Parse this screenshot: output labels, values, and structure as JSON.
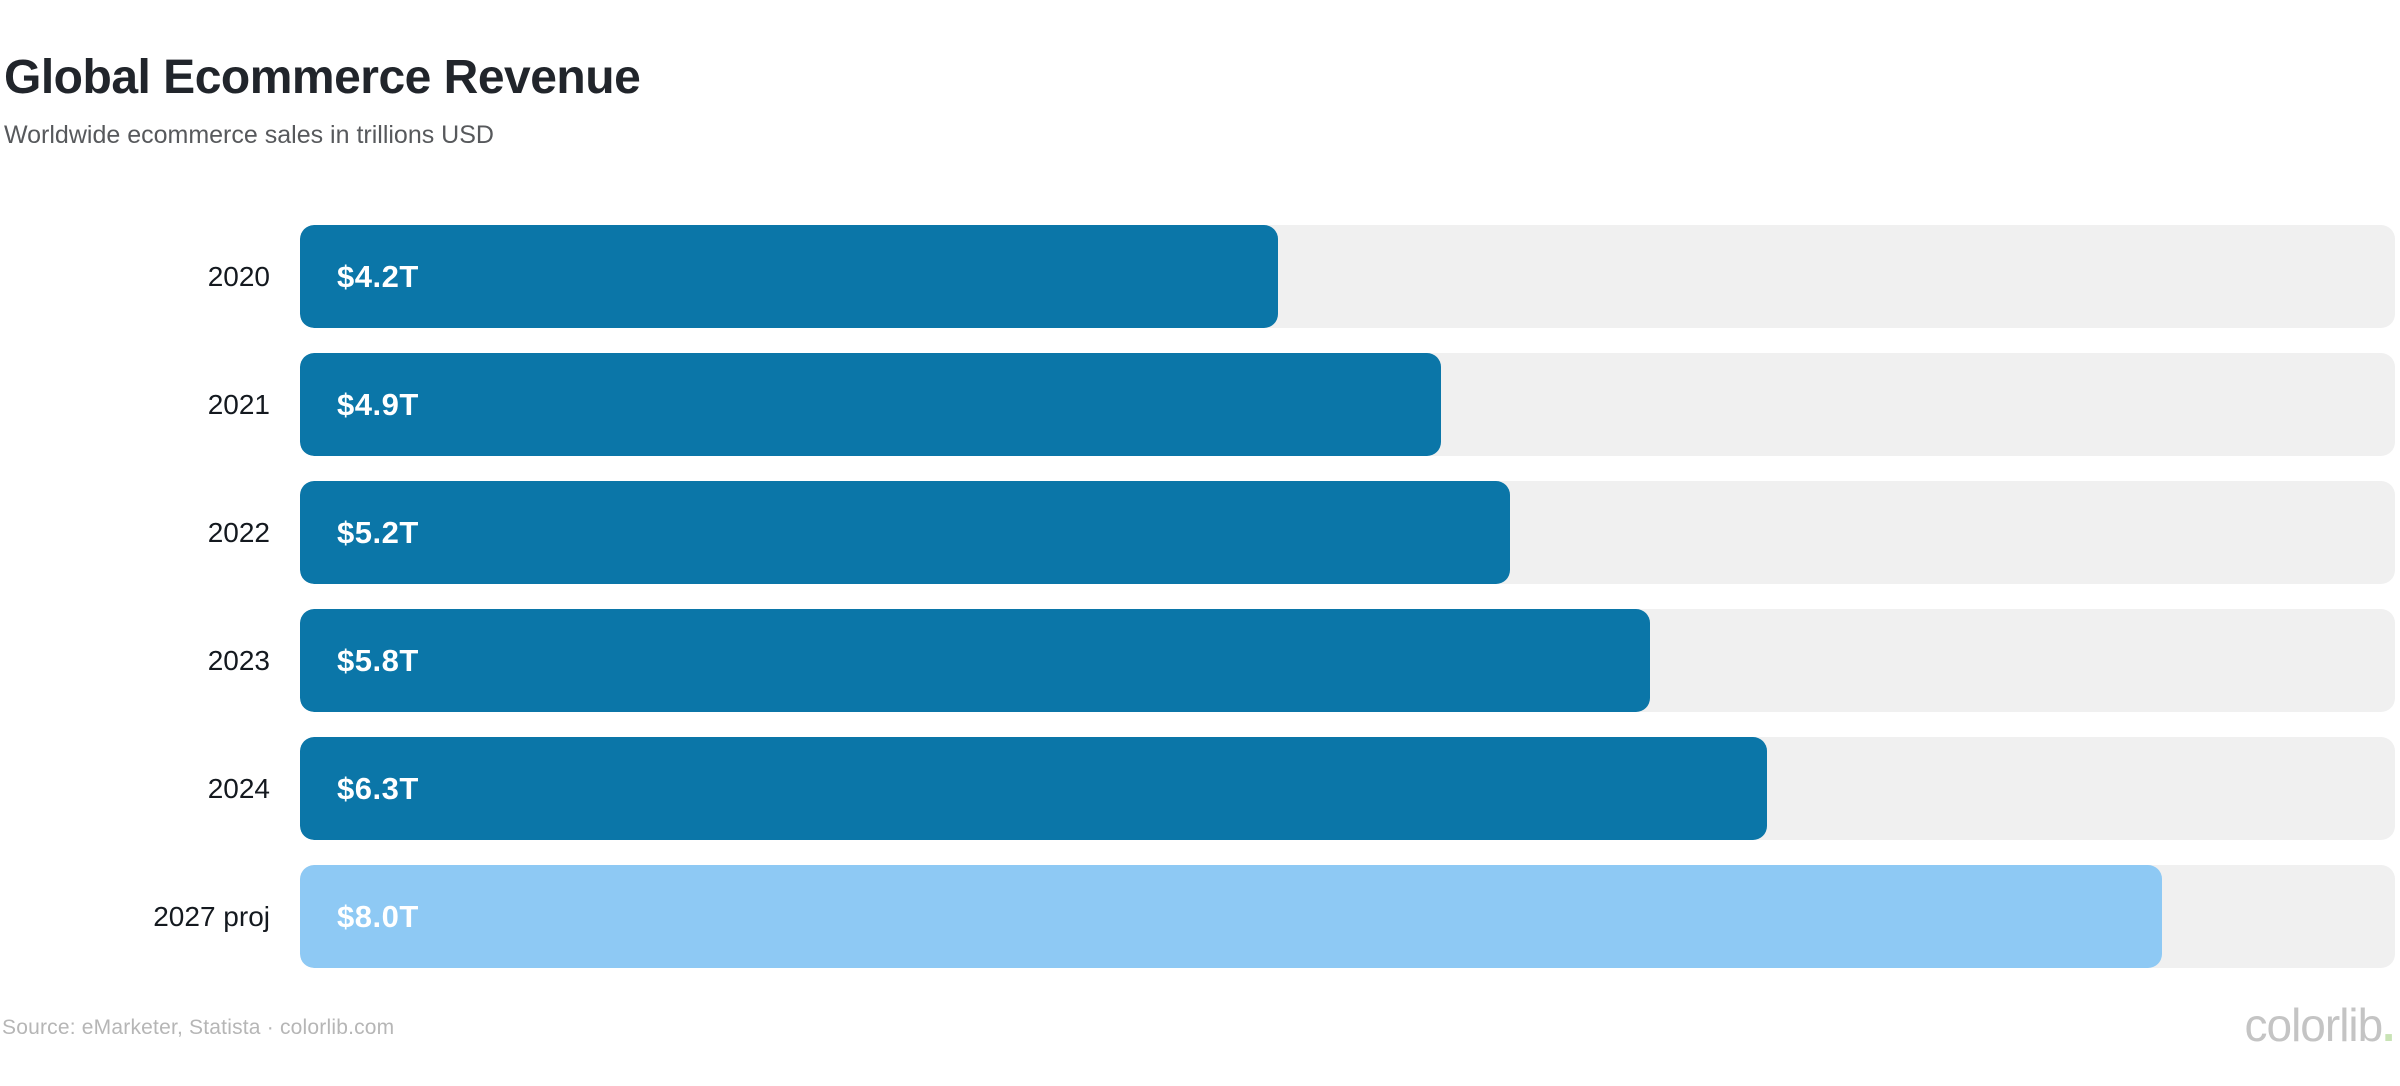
{
  "header": {
    "title": "Global Ecommerce Revenue",
    "subtitle": "Worldwide ecommerce sales in trillions USD"
  },
  "chart_data": {
    "type": "bar",
    "orientation": "horizontal",
    "title": "Global Ecommerce Revenue",
    "subtitle": "Worldwide ecommerce sales in trillions USD",
    "unit": "trillions USD",
    "categories": [
      "2020",
      "2021",
      "2022",
      "2023",
      "2024",
      "2027 proj"
    ],
    "values": [
      4.2,
      4.9,
      5.2,
      5.8,
      6.3,
      8.0
    ],
    "value_labels": [
      "$4.2T",
      "$4.9T",
      "$5.2T",
      "$5.8T",
      "$6.3T",
      "$8.0T"
    ],
    "axis_max": 9.0,
    "projected_index": 5,
    "grid": false,
    "legend": false,
    "colors": {
      "bar": "#0b76a8",
      "bar_projected": "#8ec9f4",
      "track": "#f0f0f0",
      "value_label": "#ffffff",
      "category_label": "#14191f"
    }
  },
  "footer": {
    "source": "Source: eMarketer, Statista · colorlib.com",
    "brand": "colorlib",
    "brand_dot": ".",
    "brand_dot_color": "#c8e3b5"
  }
}
